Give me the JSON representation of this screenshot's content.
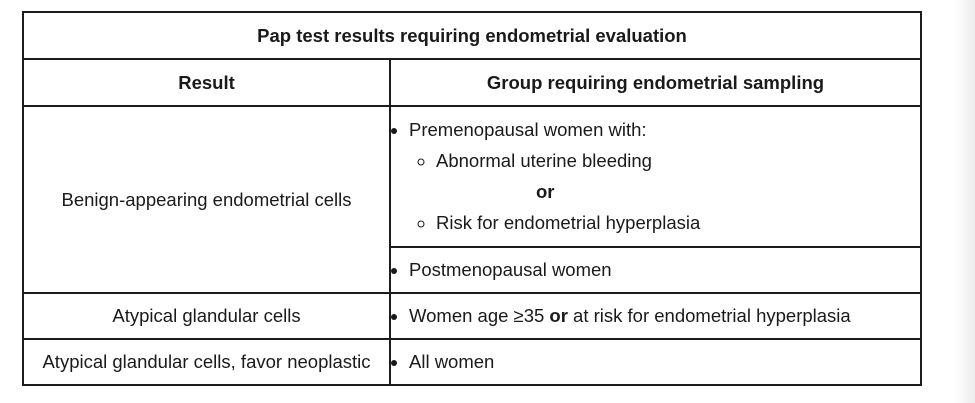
{
  "table": {
    "title": "Pap test results requiring endometrial evaluation",
    "headers": {
      "result": "Result",
      "group": "Group requiring endometrial sampling"
    },
    "rows": {
      "benign": {
        "result": "Benign-appearing endometrial cells",
        "premenopausal": {
          "lead": "Premenopausal women with:",
          "sub1": "Abnormal uterine bleeding",
          "or": "or",
          "sub2": "Risk for endometrial hyperplasia"
        },
        "postmenopausal": "Postmenopausal women"
      },
      "atypical": {
        "result": "Atypical glandular cells",
        "group_before": "Women age ≥35 ",
        "group_or": "or",
        "group_after": " at risk for endometrial hyperplasia"
      },
      "neoplastic": {
        "result": "Atypical glandular cells, favor neoplastic",
        "group": "All women"
      }
    }
  }
}
